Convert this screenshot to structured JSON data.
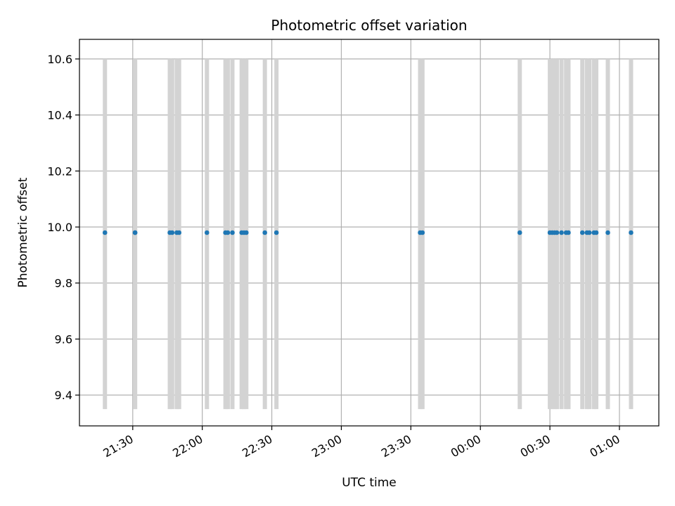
{
  "chart_data": {
    "type": "scatter",
    "title": "Photometric offset variation",
    "xlabel": "UTC time",
    "ylabel": "Photometric offset",
    "grid": true,
    "legend": "none",
    "xlim": [
      "21:07",
      "01:17"
    ],
    "ylim": [
      9.29,
      10.67
    ],
    "x_ticks": [
      "21:30",
      "22:00",
      "22:30",
      "23:00",
      "23:30",
      "00:00",
      "00:30",
      "01:00"
    ],
    "y_ticks": [
      "9.4",
      "9.6",
      "9.8",
      "10.0",
      "10.2",
      "10.4",
      "10.6"
    ],
    "marker_color": "#1f77b4",
    "errorbar_color": "#d3d3d3",
    "series": [
      {
        "x": [
          "21:18",
          "21:31",
          "21:31",
          "21:46",
          "21:47",
          "21:49",
          "21:50",
          "22:02",
          "22:10",
          "22:11",
          "22:13",
          "22:17",
          "22:18",
          "22:19",
          "22:27",
          "22:32",
          "23:34",
          "23:35",
          "00:17",
          "00:30",
          "00:31",
          "00:32",
          "00:33",
          "00:35",
          "00:37",
          "00:38",
          "00:44",
          "00:46",
          "00:47",
          "00:49",
          "00:50",
          "00:55",
          "01:05"
        ],
        "y": [
          9.98,
          9.98,
          9.98,
          9.98,
          9.98,
          9.98,
          9.98,
          9.98,
          9.98,
          9.98,
          9.98,
          9.98,
          9.98,
          9.98,
          9.98,
          9.98,
          9.98,
          9.98,
          9.98,
          9.98,
          9.98,
          9.98,
          9.98,
          9.98,
          9.98,
          9.98,
          9.98,
          9.98,
          9.98,
          9.98,
          9.98,
          9.98,
          9.98
        ],
        "y_low": 9.35,
        "y_high": 10.6
      }
    ]
  }
}
